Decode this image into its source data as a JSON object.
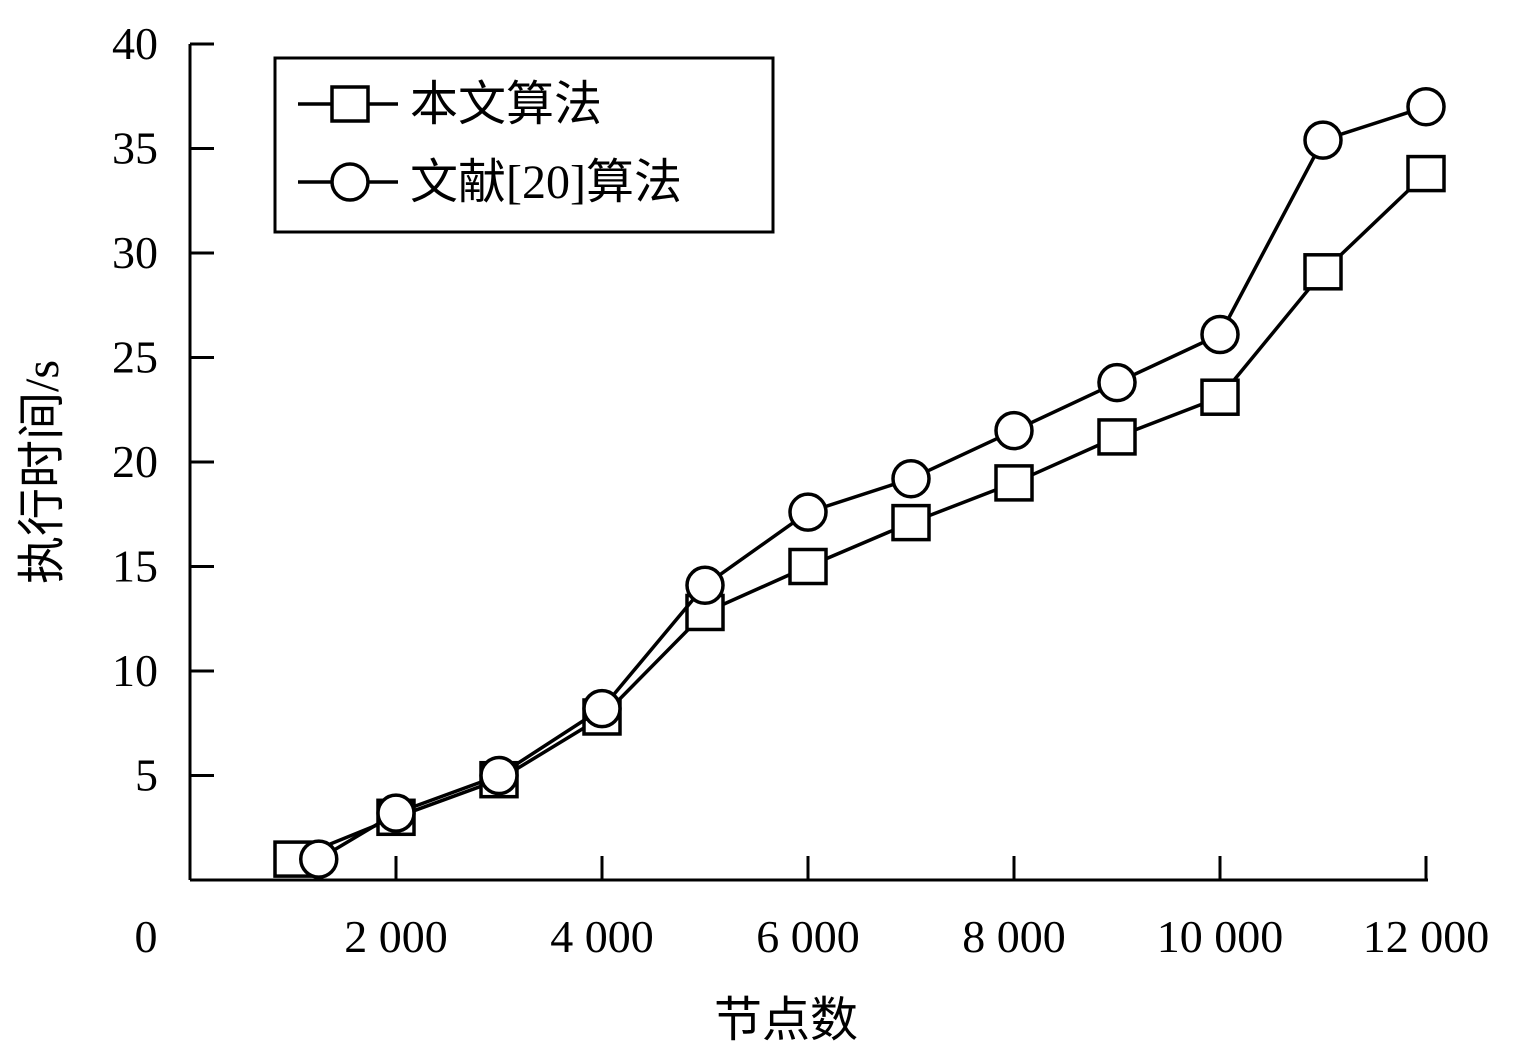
{
  "chart_data": {
    "type": "line",
    "title": "",
    "xlabel": "节点数",
    "ylabel": "执行时间/s",
    "origin_label": "0",
    "x_ticks": [
      {
        "value": 2000,
        "label": "2 000"
      },
      {
        "value": 4000,
        "label": "4 000"
      },
      {
        "value": 6000,
        "label": "6 000"
      },
      {
        "value": 8000,
        "label": "8 000"
      },
      {
        "value": 10000,
        "label": "10 000"
      },
      {
        "value": 12000,
        "label": "12 000"
      }
    ],
    "y_ticks": [
      {
        "value": 5,
        "label": "5"
      },
      {
        "value": 10,
        "label": "10"
      },
      {
        "value": 15,
        "label": "15"
      },
      {
        "value": 20,
        "label": "20"
      },
      {
        "value": 25,
        "label": "25"
      },
      {
        "value": 30,
        "label": "30"
      },
      {
        "value": 35,
        "label": "35"
      },
      {
        "value": 40,
        "label": "40"
      }
    ],
    "xlim": [
      0,
      12000
    ],
    "ylim": [
      0,
      40
    ],
    "grid": false,
    "legend_position": "top-left",
    "series": [
      {
        "name": "本文算法",
        "marker": "square",
        "color": "#000000",
        "points": [
          {
            "x": 1000,
            "y": 1.0
          },
          {
            "x": 2000,
            "y": 3.0
          },
          {
            "x": 3000,
            "y": 4.8
          },
          {
            "x": 4000,
            "y": 7.8
          },
          {
            "x": 5000,
            "y": 12.8
          },
          {
            "x": 6000,
            "y": 15.0
          },
          {
            "x": 7000,
            "y": 17.1
          },
          {
            "x": 8000,
            "y": 19.0
          },
          {
            "x": 9000,
            "y": 21.2
          },
          {
            "x": 10000,
            "y": 23.1
          },
          {
            "x": 11000,
            "y": 29.1
          },
          {
            "x": 12000,
            "y": 33.8
          }
        ]
      },
      {
        "name": "文献[20]算法",
        "marker": "circle",
        "color": "#000000",
        "points": [
          {
            "x": 1250,
            "y": 1.0
          },
          {
            "x": 2000,
            "y": 3.2
          },
          {
            "x": 3000,
            "y": 5.0
          },
          {
            "x": 4000,
            "y": 8.2
          },
          {
            "x": 5000,
            "y": 14.1
          },
          {
            "x": 6000,
            "y": 17.6
          },
          {
            "x": 7000,
            "y": 19.2
          },
          {
            "x": 8000,
            "y": 21.5
          },
          {
            "x": 9000,
            "y": 23.8
          },
          {
            "x": 10000,
            "y": 26.1
          },
          {
            "x": 11000,
            "y": 35.4
          },
          {
            "x": 12000,
            "y": 37.0
          }
        ]
      }
    ]
  }
}
